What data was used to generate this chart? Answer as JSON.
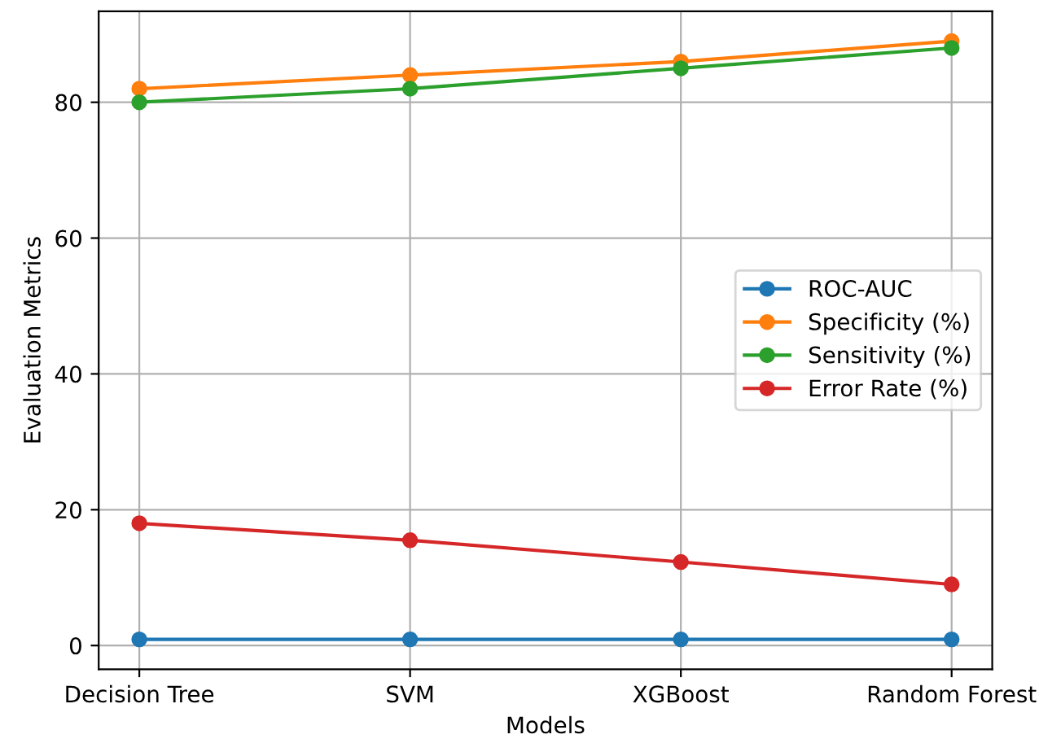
{
  "chart_data": {
    "type": "line",
    "xlabel": "Models",
    "ylabel": "Evaluation Metrics",
    "categories": [
      "Decision Tree",
      "SVM",
      "XGBoost",
      "Random Forest"
    ],
    "series": [
      {
        "name": "ROC-AUC",
        "color": "#1f77b4",
        "values": [
          0.9,
          0.9,
          0.9,
          0.9
        ]
      },
      {
        "name": "Specificity (%)",
        "color": "#ff7f0e",
        "values": [
          82,
          84,
          86,
          89
        ]
      },
      {
        "name": "Sensitivity (%)",
        "color": "#2ca02c",
        "values": [
          80,
          82,
          85,
          88
        ]
      },
      {
        "name": "Error Rate (%)",
        "color": "#d62728",
        "values": [
          18,
          15.5,
          12.3,
          9
        ]
      }
    ],
    "ylim": [
      -3.5,
      93.4
    ],
    "yticks": [
      0,
      20,
      40,
      60,
      80
    ],
    "grid": true,
    "legend": "right",
    "marker": "circle",
    "line_style": "solid"
  }
}
